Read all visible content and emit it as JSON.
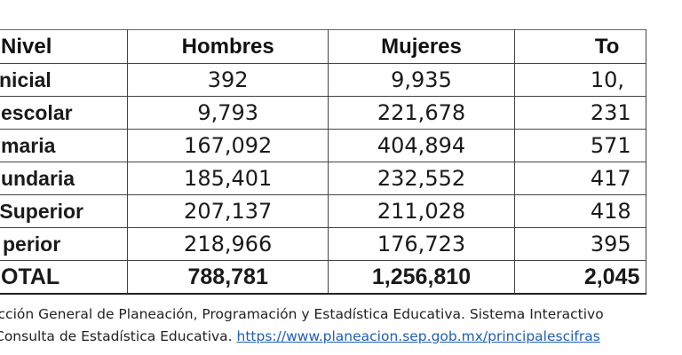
{
  "table": {
    "headers": [
      "Nivel",
      "Hombres",
      "Mujeres",
      "To"
    ],
    "rows": [
      {
        "level": "nicial",
        "hombres": "392",
        "mujeres": "9,935",
        "total": "10,"
      },
      {
        "level": "escolar",
        "hombres": "9,793",
        "mujeres": "221,678",
        "total": "231"
      },
      {
        "level": "maria",
        "hombres": "167,092",
        "mujeres": "404,894",
        "total": "571"
      },
      {
        "level": "undaria",
        "hombres": "185,401",
        "mujeres": "232,552",
        "total": "417"
      },
      {
        "level": " Superior",
        "hombres": "207,137",
        "mujeres": "211,028",
        "total": "418"
      },
      {
        "level": "perior",
        "hombres": "218,966",
        "mujeres": "176,723",
        "total": "395"
      }
    ],
    "total_row": {
      "level": "OTAL",
      "hombres": "788,781",
      "mujeres": "1,256,810",
      "total": "2,045"
    }
  },
  "source": {
    "line1": "ección General de Planeación, Programación y Estadística Educativa. Sistema Interactivo",
    "line2_text": "Consulta de Estadística Educativa. ",
    "link_text": "https://www.planeacion.sep.gob.mx/principalescifras"
  }
}
